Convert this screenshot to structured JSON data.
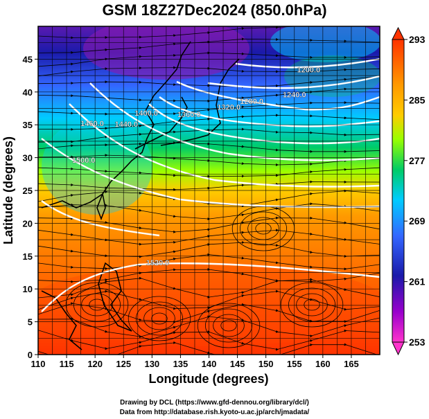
{
  "title": "GSM 18Z27Dec2024 (850.0hPa)",
  "xlabel": "Longitude (degrees)",
  "ylabel": "Latitude  (degrees)",
  "credits": {
    "line1": "Drawing by DCL (https://www.gfd-dennou.org/library/dcl/)",
    "line2": "Data from http://database.rish.kyoto-u.ac.jp/arch/jmadata/"
  },
  "map": {
    "lon_range": [
      110,
      170
    ],
    "lat_range": [
      0,
      50
    ],
    "lon_ticks": [
      110,
      115,
      120,
      125,
      130,
      135,
      140,
      145,
      150,
      155,
      160,
      165
    ],
    "lat_ticks": [
      0,
      5,
      10,
      15,
      20,
      25,
      30,
      35,
      40,
      45
    ],
    "grid": true,
    "field": "temperature shading with streamlines and geopotential height contours",
    "colorbar": {
      "min": 253,
      "max": 293,
      "tick_labels": [
        "293",
        "285",
        "277",
        "269",
        "261",
        "253"
      ],
      "tick_values": [
        293,
        285,
        277,
        269,
        261,
        253
      ],
      "colors": [
        "#ff3300",
        "#ff9900",
        "#ffcc00",
        "#99ff00",
        "#00cc66",
        "#00ccff",
        "#3366ff",
        "#1a1aaa",
        "#9900cc",
        "#ff33cc"
      ]
    },
    "contour_labels": [
      {
        "text": "1200.0",
        "lon": 157.5,
        "lat": 43
      },
      {
        "text": "1240.0",
        "lon": 155.0,
        "lat": 39.2
      },
      {
        "text": "1280.0",
        "lon": 147.5,
        "lat": 38.2
      },
      {
        "text": "1320.0",
        "lon": 143.5,
        "lat": 37.3
      },
      {
        "text": "1360.0",
        "lon": 136.5,
        "lat": 36.2
      },
      {
        "text": "1400.0",
        "lon": 129.0,
        "lat": 36.4
      },
      {
        "text": "1440.0",
        "lon": 125.5,
        "lat": 34.7
      },
      {
        "text": "1460.0",
        "lon": 119.5,
        "lat": 34.8
      },
      {
        "text": "1500.0",
        "lon": 118.0,
        "lat": 29.2
      },
      {
        "text": "1520.0",
        "lon": 131.0,
        "lat": 13.6
      }
    ]
  }
}
